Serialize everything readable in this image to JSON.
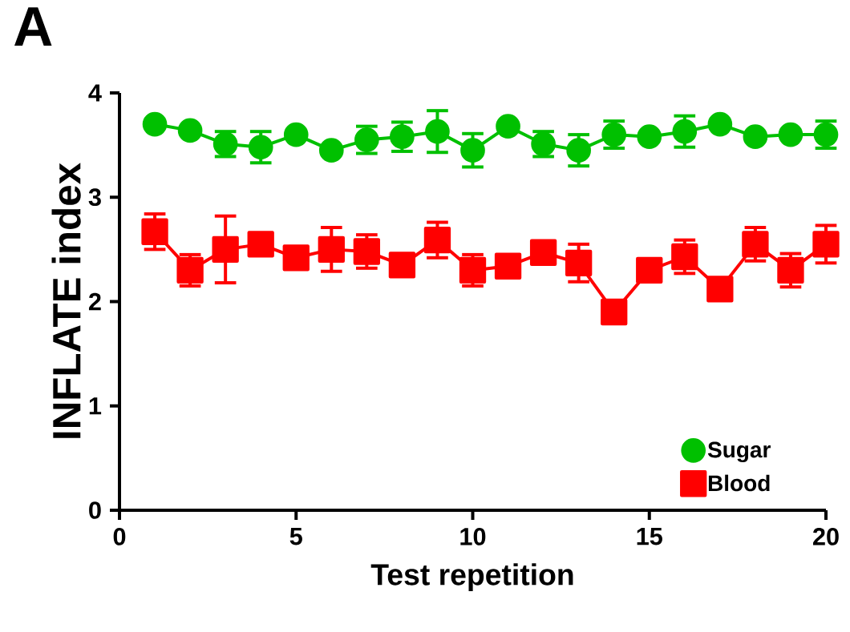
{
  "chart_data": {
    "type": "line",
    "title": "A",
    "xlabel": "Test repetition",
    "ylabel": "INFLATE index",
    "x": [
      1,
      2,
      3,
      4,
      5,
      6,
      7,
      8,
      9,
      10,
      11,
      12,
      13,
      14,
      15,
      16,
      17,
      18,
      19,
      20
    ],
    "xlim": [
      0,
      20
    ],
    "xticks": [
      0,
      5,
      10,
      15,
      20
    ],
    "ylim": [
      0,
      4
    ],
    "yticks": [
      0,
      1,
      2,
      3,
      4
    ],
    "grid": false,
    "legend": "bottom right",
    "line_style": "solid",
    "series": [
      {
        "name": "Sugar",
        "color": "#00c000",
        "marker": "circle",
        "values": [
          3.7,
          3.64,
          3.51,
          3.48,
          3.6,
          3.45,
          3.55,
          3.58,
          3.63,
          3.45,
          3.68,
          3.51,
          3.45,
          3.6,
          3.58,
          3.63,
          3.7,
          3.58,
          3.6,
          3.6
        ],
        "errors": [
          null,
          null,
          0.12,
          0.15,
          null,
          null,
          0.13,
          0.14,
          0.2,
          0.16,
          null,
          0.12,
          0.15,
          0.13,
          null,
          0.15,
          null,
          null,
          null,
          0.13
        ]
      },
      {
        "name": "Blood",
        "color": "#ff0000",
        "marker": "square",
        "values": [
          2.67,
          2.3,
          2.5,
          2.55,
          2.42,
          2.5,
          2.48,
          2.35,
          2.59,
          2.3,
          2.34,
          2.47,
          2.37,
          1.9,
          2.3,
          2.43,
          2.12,
          2.55,
          2.3,
          2.55
        ],
        "errors": [
          0.17,
          0.15,
          0.32,
          null,
          null,
          0.21,
          0.16,
          null,
          0.17,
          0.15,
          null,
          null,
          0.18,
          null,
          null,
          0.16,
          null,
          0.16,
          0.16,
          0.18
        ]
      }
    ]
  }
}
